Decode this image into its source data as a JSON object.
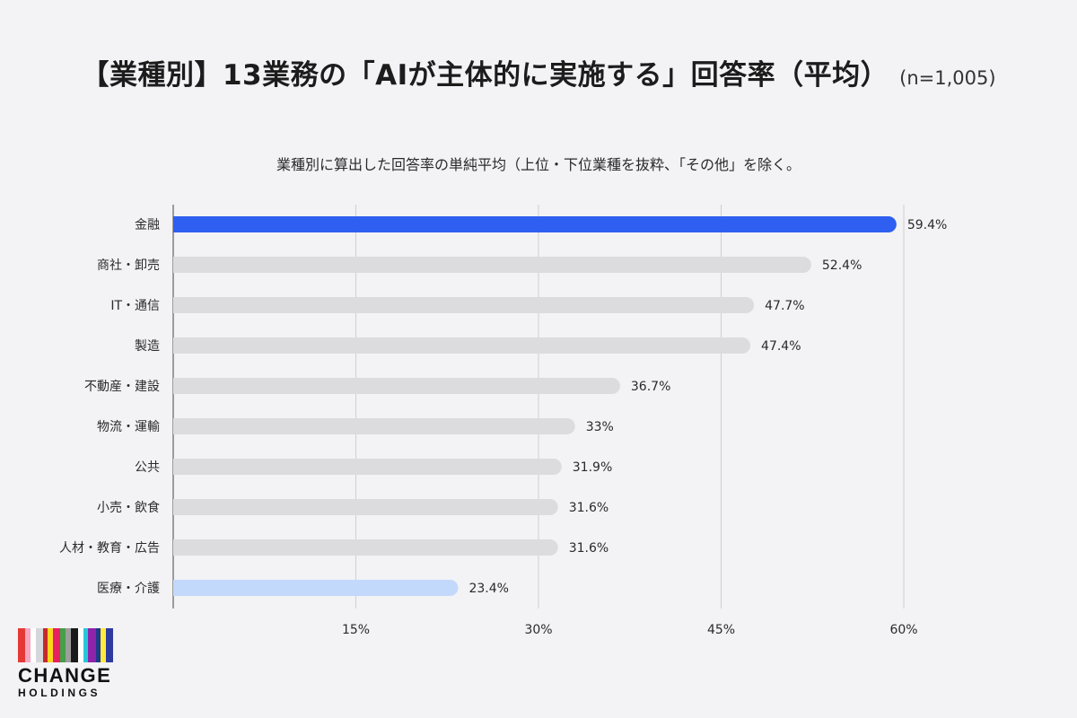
{
  "header": {
    "title": "【業種別】13業務の「AIが主体的に実施する」回答率（平均）",
    "sample_size": "(n=1,005)",
    "subtitle": "業種別に算出した回答率の単純平均（上位・下位業種を抜粋、「その他」を除く。"
  },
  "chart_data": {
    "type": "bar",
    "orientation": "horizontal",
    "categories": [
      "金融",
      "商社・卸売",
      "IT・通信",
      "製造",
      "不動産・建設",
      "物流・運輸",
      "公共",
      "小売・飲食",
      "人材・教育・広告",
      "医療・介護"
    ],
    "values": [
      59.4,
      52.4,
      47.7,
      47.4,
      36.7,
      33,
      31.9,
      31.6,
      31.6,
      23.4
    ],
    "value_labels": [
      "59.4%",
      "52.4%",
      "47.7%",
      "47.4%",
      "36.7%",
      "33%",
      "31.9%",
      "31.6%",
      "31.6%",
      "23.4%"
    ],
    "xlim": [
      0,
      60
    ],
    "xticks": [
      15,
      30,
      45,
      60
    ],
    "xtick_labels": [
      "15%",
      "30%",
      "45%",
      "60%"
    ],
    "grid": true,
    "colors": {
      "highlight_top": "#2e5ff0",
      "highlight_bottom": "#c2d9fb",
      "default": "#dcdbde",
      "grid": "#cfcfd3"
    },
    "highlight": {
      "top_index": 0,
      "bottom_index": 9
    }
  },
  "logo": {
    "main": "CHANGE",
    "sub": "HOLDINGS",
    "stripe_colors": [
      "#e53935",
      "#f4a7c0",
      "#ffffff",
      "#d6d7db",
      "#c62828",
      "#f9d71c",
      "#e91e63",
      "#43a047",
      "#9e9e9e",
      "#1a1a1a",
      "#ffffff",
      "#26c6da",
      "#8e24aa",
      "#1e3a8a",
      "#ffeb3b",
      "#2f3a9e"
    ]
  }
}
